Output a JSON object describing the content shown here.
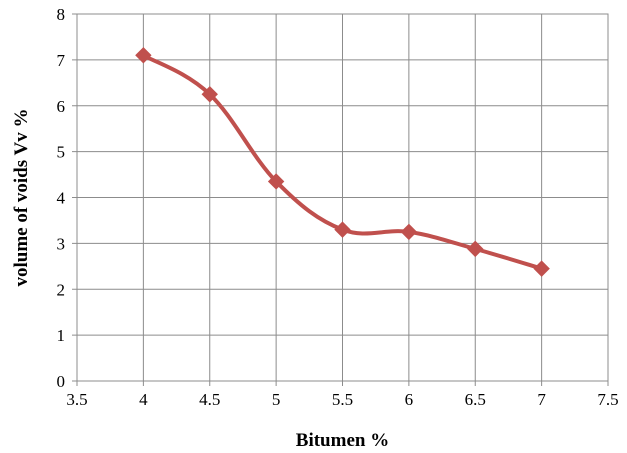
{
  "chart_data": {
    "type": "line",
    "title": "",
    "xlabel": "Bitumen %",
    "ylabel": "volume of voids Vv %",
    "xlim": [
      3.5,
      7.5
    ],
    "ylim": [
      0,
      8
    ],
    "x_ticks": [
      "3.5",
      "4",
      "4.5",
      "5",
      "5.5",
      "6",
      "6.5",
      "7",
      "7.5"
    ],
    "y_ticks": [
      "0",
      "1",
      "2",
      "3",
      "4",
      "5",
      "6",
      "7",
      "8"
    ],
    "grid": true,
    "smooth": true,
    "marker": "diamond",
    "series": [
      {
        "color": "#c0504d",
        "x": [
          4,
          4.5,
          5,
          5.5,
          6,
          6.5,
          7
        ],
        "y": [
          7.1,
          6.25,
          4.35,
          3.3,
          3.25,
          2.88,
          2.45
        ]
      }
    ]
  }
}
